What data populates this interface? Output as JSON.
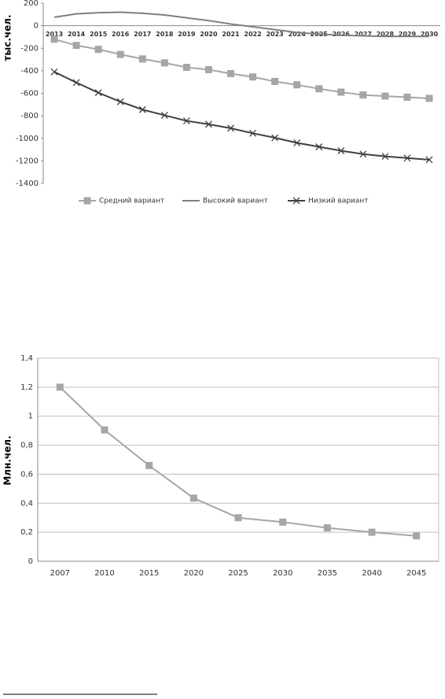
{
  "chart_data": [
    {
      "type": "line",
      "ylabel": "тыс.чел.",
      "categories": [
        "2013",
        "2014",
        "2015",
        "2016",
        "2017",
        "2018",
        "2019",
        "2020",
        "2021",
        "2022",
        "2023",
        "2024",
        "2025",
        "2026",
        "2027",
        "2028",
        "2029",
        "2030"
      ],
      "series": [
        {
          "name": "Средний вариант",
          "color": "#a6a6a6",
          "marker": "square",
          "values": [
            -120,
            -175,
            -210,
            -255,
            -295,
            -330,
            -370,
            -390,
            -425,
            -455,
            -495,
            -525,
            -560,
            -590,
            -615,
            -625,
            -635,
            -645
          ]
        },
        {
          "name": "Высокий вариант",
          "color": "#7f7f7f",
          "marker": null,
          "values": [
            75,
            105,
            115,
            120,
            110,
            95,
            70,
            45,
            15,
            -10,
            -35,
            -60,
            -75,
            -85,
            -90,
            -95,
            -95,
            -95
          ]
        },
        {
          "name": "Низкий вариант",
          "color": "#404040",
          "marker": "x",
          "values": [
            -410,
            -505,
            -595,
            -675,
            -745,
            -795,
            -845,
            -875,
            -910,
            -955,
            -995,
            -1040,
            -1075,
            -1110,
            -1140,
            -1160,
            -1175,
            -1190
          ]
        }
      ],
      "ylim": [
        -1400,
        200
      ],
      "yticks": [
        -1400,
        -1200,
        -1000,
        -800,
        -600,
        -400,
        -200,
        0,
        200
      ],
      "grid": false,
      "legend": "bottom"
    },
    {
      "type": "line",
      "ylabel": "Млн.чел.",
      "categories": [
        "2007",
        "2010",
        "2015",
        "2020",
        "2025",
        "2030",
        "2035",
        "2040",
        "2045"
      ],
      "series": [
        {
          "color": "#a6a6a6",
          "marker": "square",
          "values": [
            1.2,
            0.905,
            0.66,
            0.435,
            0.3,
            0.27,
            0.23,
            0.2,
            0.175
          ]
        }
      ],
      "ylim": [
        0,
        1.4
      ],
      "yticks": [
        0,
        {
          "value": 0.2,
          "label": "0,2"
        },
        {
          "value": 0.4,
          "label": "0,4"
        },
        {
          "value": 0.6,
          "label": "0,6"
        },
        {
          "value": 0.8,
          "label": "0,8"
        },
        1,
        {
          "value": 1.2,
          "label": "1,2"
        },
        {
          "value": 1.4,
          "label": "1,4"
        }
      ],
      "grid": true
    }
  ]
}
